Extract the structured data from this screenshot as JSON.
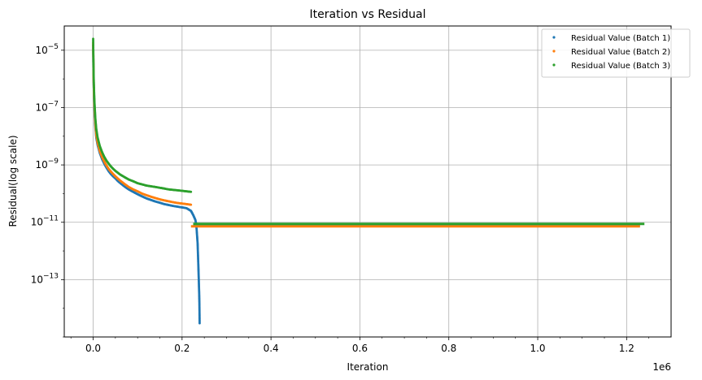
{
  "chart_data": {
    "type": "scatter",
    "title": "Iteration vs Residual",
    "xlabel": "Iteration",
    "ylabel": "Residual(log scale)",
    "x_offset_label": "1e6",
    "x_ticks": [
      0.0,
      0.2,
      0.4,
      0.6,
      0.8,
      1.0,
      1.2
    ],
    "x_tick_labels": [
      "0.0",
      "0.2",
      "0.4",
      "0.6",
      "0.8",
      "1.0",
      "1.2"
    ],
    "y_ticks": [
      1e-05,
      1e-07,
      1e-09,
      1e-11,
      1e-13
    ],
    "y_tick_labels": [
      {
        "base": "10",
        "exp": "−5"
      },
      {
        "base": "10",
        "exp": "−7"
      },
      {
        "base": "10",
        "exp": "−9"
      },
      {
        "base": "10",
        "exp": "−11"
      },
      {
        "base": "10",
        "exp": "−13"
      }
    ],
    "xlim": [
      -65000,
      1300000
    ],
    "ylim": [
      1e-15,
      7e-05
    ],
    "yscale": "log",
    "grid": true,
    "legend_position": "top-right",
    "series": [
      {
        "name": "Residual Value (Batch 1)",
        "color": "#1f77b4",
        "points": [
          [
            0,
            1.5e-05
          ],
          [
            500,
            3e-06
          ],
          [
            1000,
            8e-07
          ],
          [
            2000,
            2e-07
          ],
          [
            3000,
            8e-08
          ],
          [
            5000,
            2e-08
          ],
          [
            7000,
            9e-09
          ],
          [
            10000,
            5e-09
          ],
          [
            15000,
            2.6e-09
          ],
          [
            20000,
            1.6e-09
          ],
          [
            25000,
            1.1e-09
          ],
          [
            30000,
            8e-10
          ],
          [
            35000,
            6e-10
          ],
          [
            40000,
            4.8e-10
          ],
          [
            45000,
            4e-10
          ],
          [
            50000,
            3.4e-10
          ],
          [
            55000,
            2.8e-10
          ],
          [
            60000,
            2.4e-10
          ],
          [
            70000,
            1.8e-10
          ],
          [
            80000,
            1.4e-10
          ],
          [
            90000,
            1.15e-10
          ],
          [
            100000,
            9.5e-11
          ],
          [
            110000,
            8e-11
          ],
          [
            120000,
            6.8e-11
          ],
          [
            130000,
            6e-11
          ],
          [
            140000,
            5.3e-11
          ],
          [
            150000,
            4.8e-11
          ],
          [
            160000,
            4.3e-11
          ],
          [
            170000,
            4e-11
          ],
          [
            180000,
            3.7e-11
          ],
          [
            190000,
            3.5e-11
          ],
          [
            200000,
            3.3e-11
          ],
          [
            210000,
            3.1e-11
          ],
          [
            220000,
            2.5e-11
          ],
          [
            225000,
            1.8e-11
          ],
          [
            230000,
            1.2e-11
          ],
          [
            232000,
            8e-12
          ],
          [
            233000,
            5e-12
          ],
          [
            234000,
            3e-12
          ],
          [
            235000,
            1.8e-12
          ],
          [
            235500,
            1e-12
          ],
          [
            236000,
            6e-13
          ],
          [
            236500,
            3.5e-13
          ],
          [
            237000,
            2e-13
          ],
          [
            237500,
            1.1e-13
          ],
          [
            238000,
            6e-14
          ],
          [
            238500,
            3.2e-14
          ],
          [
            239000,
            1.5e-14
          ],
          [
            239500,
            3e-15
          ]
        ],
        "plateau": {
          "x_start": 225000,
          "x_end": 1230000,
          "y": 7.5e-12
        }
      },
      {
        "name": "Residual Value (Batch 2)",
        "color": "#ff7f0e",
        "points": [
          [
            0,
            1.8e-05
          ],
          [
            500,
            4e-06
          ],
          [
            1000,
            1e-06
          ],
          [
            2000,
            2.5e-07
          ],
          [
            3000,
            1e-07
          ],
          [
            5000,
            2.5e-08
          ],
          [
            7000,
            1.1e-08
          ],
          [
            10000,
            6e-09
          ],
          [
            15000,
            3e-09
          ],
          [
            20000,
            1.9e-09
          ],
          [
            25000,
            1.3e-09
          ],
          [
            30000,
            9.5e-10
          ],
          [
            35000,
            7.2e-10
          ],
          [
            40000,
            5.8e-10
          ],
          [
            45000,
            4.8e-10
          ],
          [
            50000,
            4e-10
          ],
          [
            55000,
            3.4e-10
          ],
          [
            60000,
            2.9e-10
          ],
          [
            70000,
            2.2e-10
          ],
          [
            80000,
            1.7e-10
          ],
          [
            90000,
            1.4e-10
          ],
          [
            100000,
            1.2e-10
          ],
          [
            110000,
            1e-10
          ],
          [
            120000,
            8.8e-11
          ],
          [
            130000,
            7.8e-11
          ],
          [
            140000,
            7e-11
          ],
          [
            150000,
            6.3e-11
          ],
          [
            160000,
            5.8e-11
          ],
          [
            170000,
            5.4e-11
          ],
          [
            180000,
            5e-11
          ],
          [
            190000,
            4.7e-11
          ],
          [
            200000,
            4.5e-11
          ],
          [
            210000,
            4.3e-11
          ],
          [
            220000,
            4.1e-11
          ]
        ],
        "plateau": {
          "x_start": 220000,
          "x_end": 1230000,
          "y": 7.2e-12
        }
      },
      {
        "name": "Residual Value (Batch 3)",
        "color": "#2ca02c",
        "points": [
          [
            0,
            2.5e-05
          ],
          [
            500,
            6e-06
          ],
          [
            1000,
            1.5e-06
          ],
          [
            2000,
            4e-07
          ],
          [
            3000,
            1.5e-07
          ],
          [
            5000,
            4e-08
          ],
          [
            7000,
            1.8e-08
          ],
          [
            10000,
            9e-09
          ],
          [
            15000,
            4.5e-09
          ],
          [
            20000,
            2.8e-09
          ],
          [
            25000,
            1.9e-09
          ],
          [
            30000,
            1.4e-09
          ],
          [
            35000,
            1.1e-09
          ],
          [
            40000,
            8.8e-10
          ],
          [
            45000,
            7.3e-10
          ],
          [
            50000,
            6.2e-10
          ],
          [
            55000,
            5.4e-10
          ],
          [
            60000,
            4.7e-10
          ],
          [
            70000,
            3.8e-10
          ],
          [
            80000,
            3.1e-10
          ],
          [
            90000,
            2.7e-10
          ],
          [
            100000,
            2.3e-10
          ],
          [
            110000,
            2.1e-10
          ],
          [
            120000,
            1.9e-10
          ],
          [
            130000,
            1.8e-10
          ],
          [
            140000,
            1.7e-10
          ],
          [
            150000,
            1.6e-10
          ],
          [
            160000,
            1.5e-10
          ],
          [
            170000,
            1.4e-10
          ],
          [
            180000,
            1.35e-10
          ],
          [
            190000,
            1.3e-10
          ],
          [
            200000,
            1.25e-10
          ],
          [
            210000,
            1.2e-10
          ],
          [
            220000,
            1.15e-10
          ]
        ],
        "plateau": {
          "x_start": 225000,
          "x_end": 1240000,
          "y": 8.8e-12
        }
      }
    ]
  }
}
